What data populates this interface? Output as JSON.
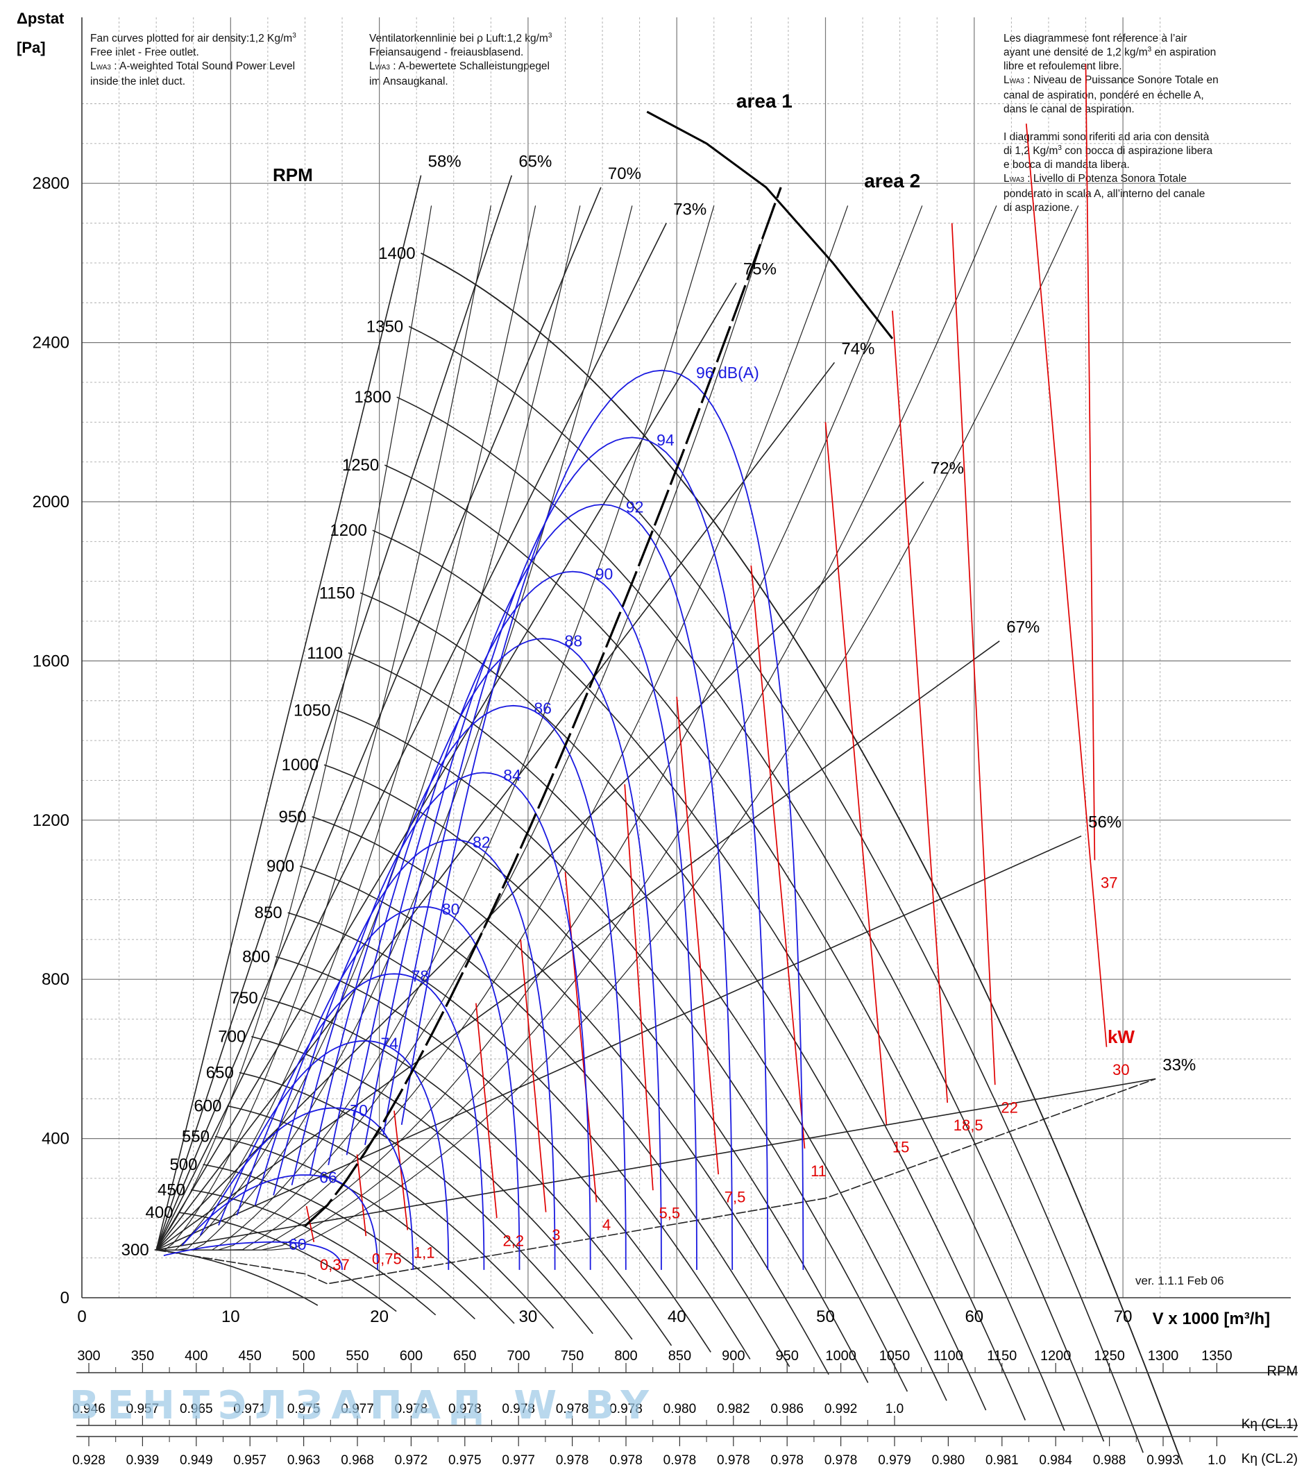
{
  "notes": {
    "en": [
      "Fan curves plotted for air density:1,2 Kg/m",
      "Free inlet - Free outlet.",
      "L",
      "WA3",
      " : A-weighted Total Sound Power Level",
      "inside the inlet duct."
    ],
    "de": [
      "Ventilatorkennlinie bei ρ Luft:1,2 kg/m",
      "Freiansaugend - freiausblasend.",
      "L",
      "WA3",
      " : A-bewertete Schalleistungpegel",
      "im Ansaugkanal."
    ],
    "fr": [
      "Les diagrammese font réference à l’air",
      "ayant une densité de 1,2 kg/m",
      " en aspiration",
      "libre et refoulement libre.",
      "L",
      "WA3",
      " : Niveau de Puissance Sonore Totale en",
      "canal de aspiration, pondéré en échelle A,",
      "dans le canal de aspiration."
    ],
    "it": [
      "I diagrammi sono riferiti ad aria con densità",
      "di 1,2 Kg/m",
      " con bocca di aspirazione libera",
      "e bocca di mandata libera.",
      "L",
      "WA3",
      " : Livello di Potenza Sonora Totale",
      "ponderato in scala A, all’interno del canale",
      "di aspirazione."
    ],
    "sup3": "3"
  },
  "version": "ver. 1.1.1 Feb 06",
  "watermark": "ВЕНТЭЛЗАПАД   W.BY",
  "colors": {
    "rpm_curve": "#222222",
    "power_line": "#e00000",
    "sound_line": "#1a1ae0",
    "grid": "#888888"
  },
  "chart_data": {
    "type": "line",
    "title": "",
    "xlabel": "V x 1000 [m³/h]",
    "ylabel": "Δpstat [Pa]",
    "xlim": [
      0,
      70
    ],
    "ylim": [
      0,
      3100
    ],
    "x_ticks": [
      0,
      10,
      20,
      30,
      40,
      50,
      60,
      70
    ],
    "y_ticks": [
      0,
      400,
      800,
      1200,
      1600,
      2000,
      2400,
      2800
    ],
    "grid": true,
    "rpm_label": "RPM",
    "rpm_curves": [
      {
        "rpm": 300,
        "label": "300"
      },
      {
        "rpm": 400,
        "label": "400"
      },
      {
        "rpm": 450,
        "label": "450"
      },
      {
        "rpm": 500,
        "label": "500"
      },
      {
        "rpm": 550,
        "label": "550"
      },
      {
        "rpm": 600,
        "label": "600"
      },
      {
        "rpm": 650,
        "label": "650"
      },
      {
        "rpm": 700,
        "label": "700"
      },
      {
        "rpm": 750,
        "label": "750"
      },
      {
        "rpm": 800,
        "label": "800"
      },
      {
        "rpm": 850,
        "label": "850"
      },
      {
        "rpm": 900,
        "label": "900"
      },
      {
        "rpm": 950,
        "label": "950"
      },
      {
        "rpm": 1000,
        "label": "1000"
      },
      {
        "rpm": 1050,
        "label": "1050"
      },
      {
        "rpm": 1100,
        "label": "1100"
      },
      {
        "rpm": 1150,
        "label": "1150"
      },
      {
        "rpm": 1200,
        "label": "1200"
      },
      {
        "rpm": 1250,
        "label": "1250"
      },
      {
        "rpm": 1300,
        "label": "1300"
      },
      {
        "rpm": 1350,
        "label": "1350"
      },
      {
        "rpm": 1400,
        "label": "1400"
      }
    ],
    "efficiency_lines": [
      {
        "label": "58%",
        "x": 22.8,
        "y": 2820
      },
      {
        "label": "65%",
        "x": 28.9,
        "y": 2820
      },
      {
        "label": "70%",
        "x": 34.9,
        "y": 2790
      },
      {
        "label": "73%",
        "x": 39.3,
        "y": 2700
      },
      {
        "label": "75%",
        "x": 44.0,
        "y": 2550
      },
      {
        "label": "74%",
        "x": 50.6,
        "y": 2350
      },
      {
        "label": "72%",
        "x": 56.6,
        "y": 2050
      },
      {
        "label": "67%",
        "x": 61.7,
        "y": 1650
      },
      {
        "label": "56%",
        "x": 67.2,
        "y": 1160
      },
      {
        "label": "33%",
        "x": 72.2,
        "y": 550
      }
    ],
    "power_label": "kW",
    "power_lines": [
      {
        "kw": "0,37",
        "x": 15.1,
        "y": 230,
        "lx": 16.0,
        "ly": 70
      },
      {
        "kw": "0,75",
        "x": 18.5,
        "y": 360,
        "lx": 19.5,
        "ly": 85
      },
      {
        "kw": "1,1",
        "x": 21.0,
        "y": 470,
        "lx": 22.3,
        "ly": 100
      },
      {
        "kw": "2,2",
        "x": 26.5,
        "y": 740,
        "lx": 28.3,
        "ly": 130
      },
      {
        "kw": "3",
        "x": 29.5,
        "y": 900,
        "lx": 31.6,
        "ly": 145
      },
      {
        "kw": "4",
        "x": 32.5,
        "y": 1070,
        "lx": 35.0,
        "ly": 170
      },
      {
        "kw": "5,5",
        "x": 36.5,
        "y": 1290,
        "lx": 38.8,
        "ly": 200
      },
      {
        "kw": "7,5",
        "x": 40.0,
        "y": 1510,
        "lx": 43.2,
        "ly": 240
      },
      {
        "kw": "11",
        "x": 45.0,
        "y": 1840,
        "lx": 49.0,
        "ly": 305
      },
      {
        "kw": "15",
        "x": 50.0,
        "y": 2200,
        "lx": 54.5,
        "ly": 365
      },
      {
        "kw": "18,5",
        "x": 54.5,
        "y": 2480,
        "lx": 58.6,
        "ly": 420
      },
      {
        "kw": "22",
        "x": 58.5,
        "y": 2700,
        "lx": 61.8,
        "ly": 465
      },
      {
        "kw": "30",
        "x": 63.5,
        "y": 2950,
        "lx": 69.3,
        "ly": 560
      },
      {
        "kw": "37",
        "x": 67.5,
        "y": 3100,
        "lx": 68.5,
        "ly": 1030
      }
    ],
    "sound_levels": [
      {
        "db": "60",
        "label": "60"
      },
      {
        "db": "66",
        "label": "66"
      },
      {
        "db": "70",
        "label": "70"
      },
      {
        "db": "74",
        "label": "74"
      },
      {
        "db": "78",
        "label": "78"
      },
      {
        "db": "80",
        "label": "80"
      },
      {
        "db": "82",
        "label": "82"
      },
      {
        "db": "84",
        "label": "84"
      },
      {
        "db": "86",
        "label": "86"
      },
      {
        "db": "88",
        "label": "88"
      },
      {
        "db": "90",
        "label": "90"
      },
      {
        "db": "92",
        "label": "92"
      },
      {
        "db": "94",
        "label": "94"
      },
      {
        "db": "96",
        "label": "96 dB(A)"
      }
    ],
    "areas": [
      {
        "label": "area 1",
        "x": 44.0,
        "y": 2990
      },
      {
        "label": "area 2",
        "x": 52.6,
        "y": 2790
      }
    ],
    "rpm_scale": {
      "label": "RPM",
      "values": [
        "300",
        "350",
        "400",
        "450",
        "500",
        "550",
        "600",
        "650",
        "700",
        "750",
        "800",
        "850",
        "900",
        "950",
        "1000",
        "1050",
        "1100",
        "1150",
        "1200",
        "1250",
        "1300",
        "1350"
      ]
    },
    "kn_cl1": {
      "label": "Kη (CL.1)",
      "values": [
        "0.946",
        "0.957",
        "0.965",
        "0.971",
        "0.975",
        "0.977",
        "0.978",
        "0.978",
        "0.978",
        "0.978",
        "0.978",
        "0.980",
        "0.982",
        "0.986",
        "0.992",
        "1.0"
      ]
    },
    "kn_cl2": {
      "label": "Kη (CL.2)",
      "values": [
        "0.928",
        "0.939",
        "0.949",
        "0.957",
        "0.963",
        "0.968",
        "0.972",
        "0.975",
        "0.977",
        "0.978",
        "0.978",
        "0.978",
        "0.978",
        "0.978",
        "0.978",
        "0.979",
        "0.980",
        "0.981",
        "0.984",
        "0.988",
        "0.993",
        "1.0"
      ]
    }
  }
}
